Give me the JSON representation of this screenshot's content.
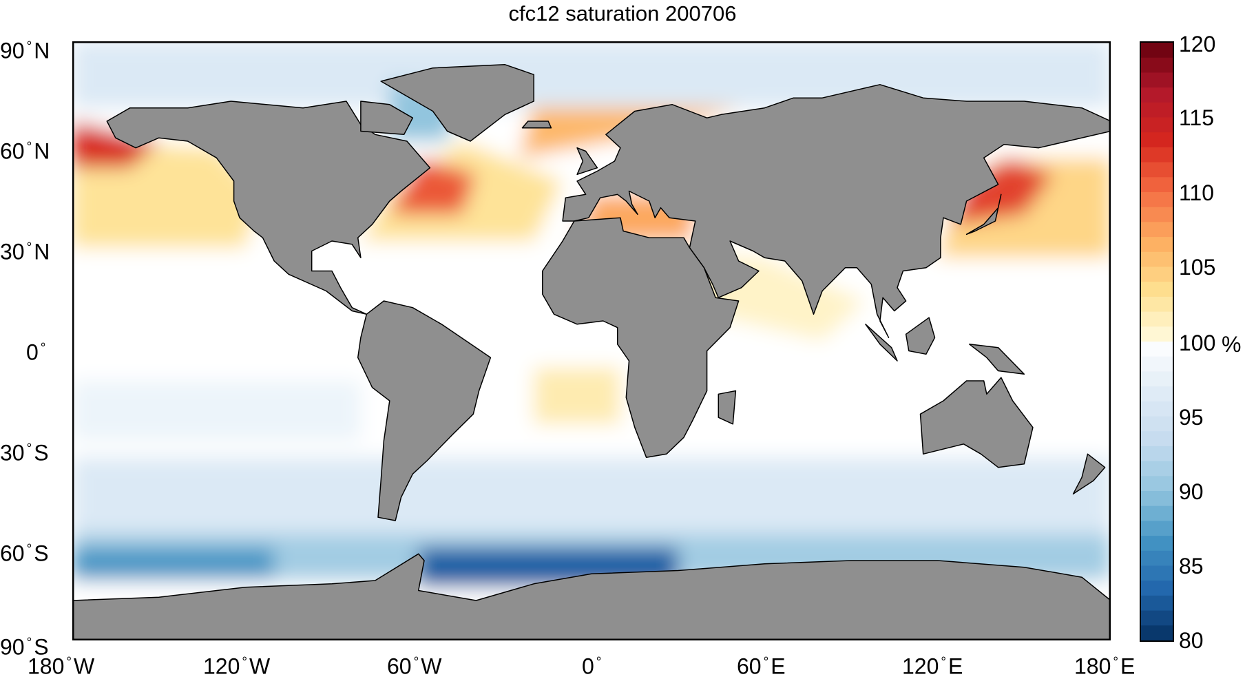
{
  "title": "cfc12 saturation 200706",
  "lat_ticks": [
    {
      "deg": "90",
      "hem": "N"
    },
    {
      "deg": "60",
      "hem": "N"
    },
    {
      "deg": "30",
      "hem": "N"
    },
    {
      "deg": "0",
      "hem": ""
    },
    {
      "deg": "30",
      "hem": "S"
    },
    {
      "deg": "60",
      "hem": "S"
    },
    {
      "deg": "90",
      "hem": "S"
    }
  ],
  "lon_ticks": [
    {
      "deg": "180",
      "hem": "W"
    },
    {
      "deg": "120",
      "hem": "W"
    },
    {
      "deg": "60",
      "hem": "W"
    },
    {
      "deg": "0",
      "hem": ""
    },
    {
      "deg": "60",
      "hem": "E"
    },
    {
      "deg": "120",
      "hem": "E"
    },
    {
      "deg": "180",
      "hem": "E"
    }
  ],
  "colorbar": {
    "min": 80,
    "max": 120,
    "ticks": [
      "120",
      "115",
      "110",
      "105",
      "100",
      "95",
      "90",
      "85",
      "80"
    ],
    "unit": "%",
    "colors_high": [
      "#67000d",
      "#b2182b",
      "#d6271e",
      "#f46d43",
      "#fdae61",
      "#fee090",
      "#fffbe0"
    ],
    "colors_low": [
      "#ffffff",
      "#e0ecf6",
      "#c6dbef",
      "#92c5de",
      "#4393c3",
      "#2166ac",
      "#053061"
    ]
  },
  "map": {
    "land_color": "#8f8f8f",
    "coast_color": "#000000",
    "ocean_neutral": "#ffffff"
  }
}
